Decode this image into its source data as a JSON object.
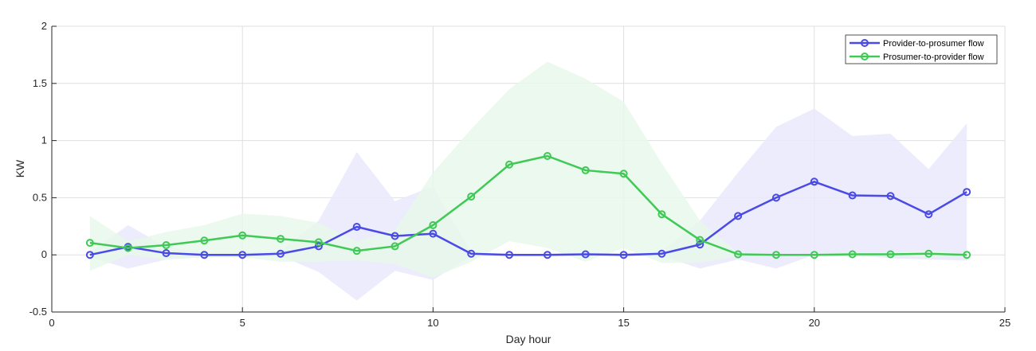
{
  "chart_data": {
    "type": "line",
    "title": "",
    "xlabel": "Day hour",
    "ylabel": "KW",
    "xlim": [
      0,
      25
    ],
    "ylim": [
      -0.5,
      2
    ],
    "xticks": [
      0,
      5,
      10,
      15,
      20,
      25
    ],
    "yticks": [
      -0.5,
      0,
      0.5,
      1,
      1.5,
      2
    ],
    "xtick_labels": [
      "0",
      "5",
      "10",
      "15",
      "20",
      "25"
    ],
    "ytick_labels": [
      "-0.5",
      "0",
      "0.5",
      "1",
      "1.5",
      "2"
    ],
    "grid": true,
    "legend_position": "top-right",
    "x": [
      1,
      2,
      3,
      4,
      5,
      6,
      7,
      8,
      9,
      10,
      11,
      12,
      13,
      14,
      15,
      16,
      17,
      18,
      19,
      20,
      21,
      22,
      23,
      24
    ],
    "series": [
      {
        "name": "Provider-to-prosumer flow",
        "color": "#4a4ae6",
        "band_color": "#e9e9fb",
        "values": [
          0.0,
          0.07,
          0.015,
          0.0,
          0.0,
          0.01,
          0.075,
          0.245,
          0.165,
          0.185,
          0.01,
          0.0,
          0.0,
          0.005,
          0.0,
          0.01,
          0.09,
          0.34,
          0.5,
          0.64,
          0.52,
          0.515,
          0.355,
          0.55
        ],
        "band_upper": [
          0.02,
          0.26,
          0.07,
          0.02,
          0.02,
          0.03,
          0.3,
          0.9,
          0.47,
          0.6,
          0.02,
          0.01,
          0.01,
          0.02,
          0.01,
          0.03,
          0.3,
          0.72,
          1.12,
          1.28,
          1.04,
          1.06,
          0.75,
          1.15
        ],
        "band_lower": [
          -0.02,
          -0.12,
          -0.04,
          -0.02,
          -0.02,
          -0.01,
          -0.15,
          -0.4,
          -0.14,
          -0.22,
          -0.01,
          -0.01,
          -0.01,
          -0.01,
          -0.01,
          -0.01,
          -0.12,
          -0.04,
          -0.12,
          0.0,
          0.0,
          -0.03,
          -0.04,
          -0.05
        ]
      },
      {
        "name": "Prosumer-to-provider flow",
        "color": "#3fc955",
        "band_color": "#e8f8eb",
        "values": [
          0.105,
          0.06,
          0.085,
          0.125,
          0.17,
          0.14,
          0.11,
          0.035,
          0.075,
          0.26,
          0.51,
          0.79,
          0.865,
          0.74,
          0.71,
          0.355,
          0.13,
          0.005,
          0.0,
          0.0,
          0.005,
          0.005,
          0.01,
          0.0
        ],
        "band_upper": [
          0.34,
          0.12,
          0.2,
          0.26,
          0.36,
          0.34,
          0.28,
          0.12,
          0.22,
          0.72,
          1.1,
          1.45,
          1.69,
          1.54,
          1.34,
          0.8,
          0.3,
          0.02,
          0.01,
          0.01,
          0.02,
          0.02,
          0.04,
          0.01
        ],
        "band_lower": [
          -0.14,
          0.0,
          -0.04,
          -0.02,
          -0.02,
          -0.06,
          -0.06,
          -0.05,
          -0.08,
          -0.2,
          -0.06,
          0.12,
          0.06,
          -0.06,
          0.06,
          -0.07,
          -0.07,
          -0.01,
          -0.01,
          -0.01,
          -0.01,
          -0.01,
          -0.02,
          -0.01
        ]
      }
    ]
  }
}
